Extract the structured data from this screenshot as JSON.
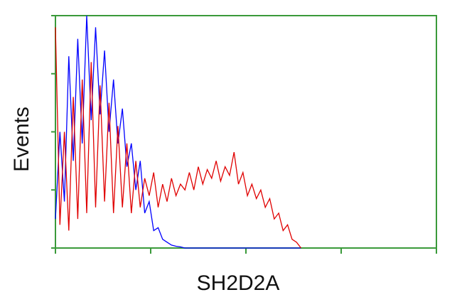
{
  "chart_data": {
    "type": "line",
    "x_label": "SH2D2A",
    "y_label": "Events",
    "x": [
      0,
      12,
      24,
      36,
      48,
      60,
      72,
      84,
      96,
      108,
      120,
      132,
      144,
      156,
      168,
      180,
      192,
      204,
      216,
      228,
      240,
      252,
      264,
      276,
      288,
      300,
      312,
      324,
      336,
      348,
      360,
      372,
      384,
      396,
      408,
      420,
      432,
      444,
      456,
      468,
      480,
      492,
      504,
      516,
      528,
      540,
      552,
      564,
      576,
      588,
      600,
      612,
      624,
      636,
      648,
      660
    ],
    "series": [
      {
        "color": "#0000ff",
        "values": [
          50,
          200,
          80,
          330,
          150,
          360,
          180,
          400,
          220,
          380,
          230,
          340,
          200,
          290,
          180,
          240,
          140,
          180,
          100,
          150,
          60,
          80,
          30,
          35,
          15,
          10,
          5,
          3,
          2,
          0,
          0,
          0,
          0,
          0,
          0,
          0,
          0,
          0,
          0,
          0,
          0,
          0,
          0,
          0,
          0,
          0,
          0,
          0,
          0,
          0,
          0,
          0,
          0,
          0,
          0,
          0
        ]
      },
      {
        "color": "#e00000",
        "values": [
          380,
          40,
          200,
          30,
          260,
          50,
          290,
          60,
          320,
          70,
          280,
          80,
          250,
          60,
          210,
          70,
          180,
          60,
          150,
          70,
          120,
          90,
          130,
          70,
          110,
          80,
          120,
          90,
          110,
          100,
          130,
          100,
          140,
          110,
          135,
          120,
          150,
          115,
          140,
          125,
          165,
          110,
          130,
          90,
          110,
          85,
          100,
          70,
          85,
          50,
          60,
          30,
          40,
          15,
          10,
          0
        ]
      }
    ],
    "xlim": [
      0,
      1024
    ],
    "xticks": [
      0,
      256,
      512,
      768,
      1024
    ],
    "ylim": [
      0,
      400
    ],
    "yticks": [
      0,
      100,
      200,
      300,
      400
    ],
    "axis_color": "#3a9a3a"
  }
}
